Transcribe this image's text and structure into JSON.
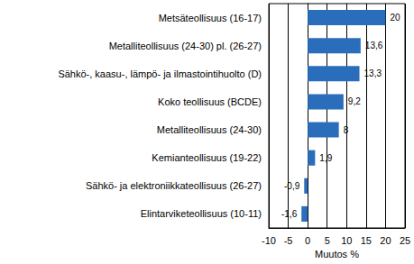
{
  "chart_data": {
    "type": "bar",
    "orientation": "horizontal",
    "x_label": "Muutos %",
    "categories": [
      "Metsäteollisuus (16-17)",
      "Metalliteollisuus (24-30) pl. (26-27)",
      "Sähkö-, kaasu-, lämpö- ja ilmastointihuolto (D)",
      "Koko teollisuus (BCDE)",
      "Metalliteollisuus (24-30)",
      "Kemianteollisuus (19-22)",
      "Sähkö- ja elektroniikkateollisuus (26-27)",
      "Elintarviketeollisuus (10-11)"
    ],
    "values": [
      20,
      13.6,
      13.3,
      9.2,
      8,
      1.9,
      -0.9,
      -1.6
    ],
    "value_labels": [
      "20",
      "13,6",
      "13,3",
      "9,2",
      "8",
      "1,9",
      "-0,9",
      "-1,6"
    ],
    "data_labels": true,
    "color": "#2a6ebb",
    "xlim": [
      -10,
      25
    ],
    "xticks": [
      -10,
      -5,
      0,
      5,
      10,
      15,
      20,
      25
    ],
    "grid": true
  }
}
